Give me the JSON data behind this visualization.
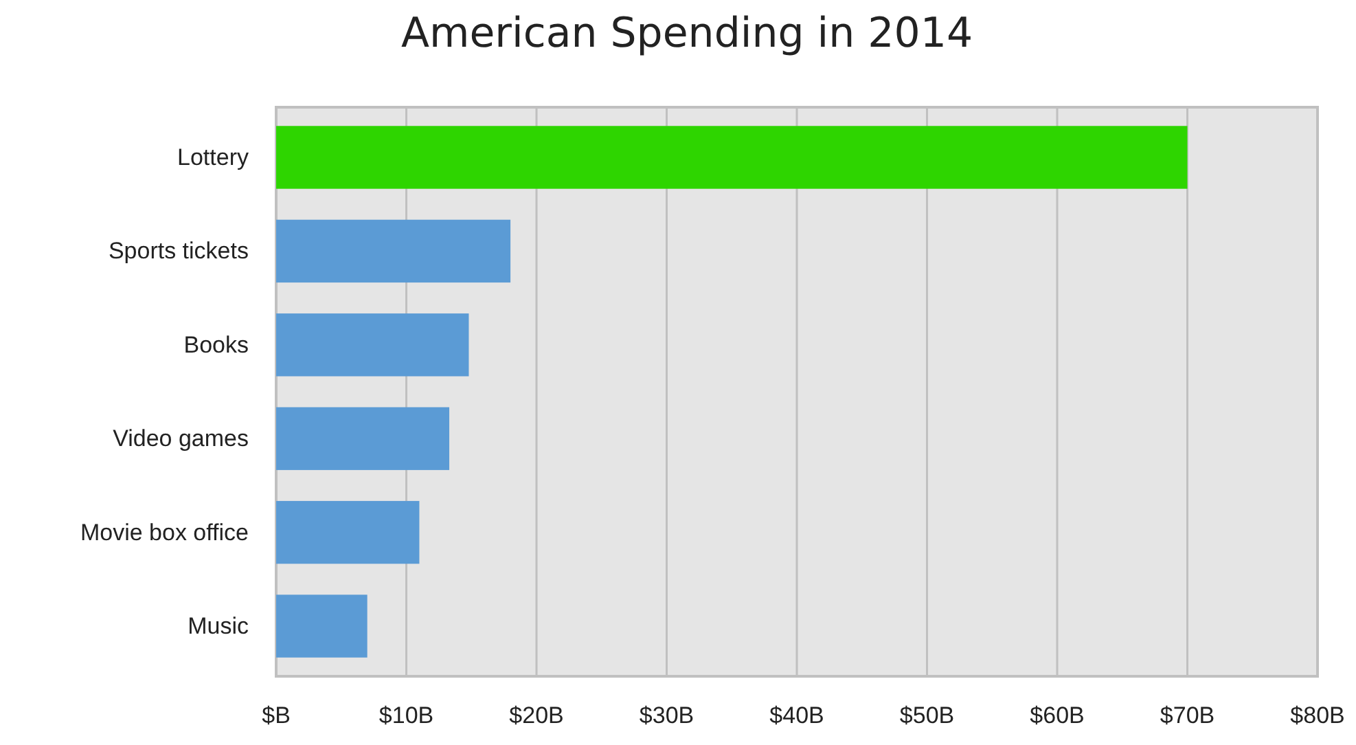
{
  "chart_data": {
    "type": "bar",
    "title": "American Spending in 2014",
    "orientation": "horizontal",
    "categories": [
      "Lottery",
      "Sports tickets",
      "Books",
      "Video games",
      "Movie box office",
      "Music"
    ],
    "values": [
      70,
      18,
      14.8,
      13.3,
      11,
      7
    ],
    "colors": [
      "#2ed500",
      "#5b9bd5",
      "#5b9bd5",
      "#5b9bd5",
      "#5b9bd5",
      "#5b9bd5"
    ],
    "xlim": [
      0,
      80
    ],
    "xticks": [
      {
        "value": 0,
        "label": "$B"
      },
      {
        "value": 10,
        "label": "$10B"
      },
      {
        "value": 20,
        "label": "$20B"
      },
      {
        "value": 30,
        "label": "$30B"
      },
      {
        "value": 40,
        "label": "$40B"
      },
      {
        "value": 50,
        "label": "$50B"
      },
      {
        "value": 60,
        "label": "$60B"
      },
      {
        "value": 70,
        "label": "$70B"
      },
      {
        "value": 80,
        "label": "$80B"
      }
    ],
    "grid": "x"
  }
}
